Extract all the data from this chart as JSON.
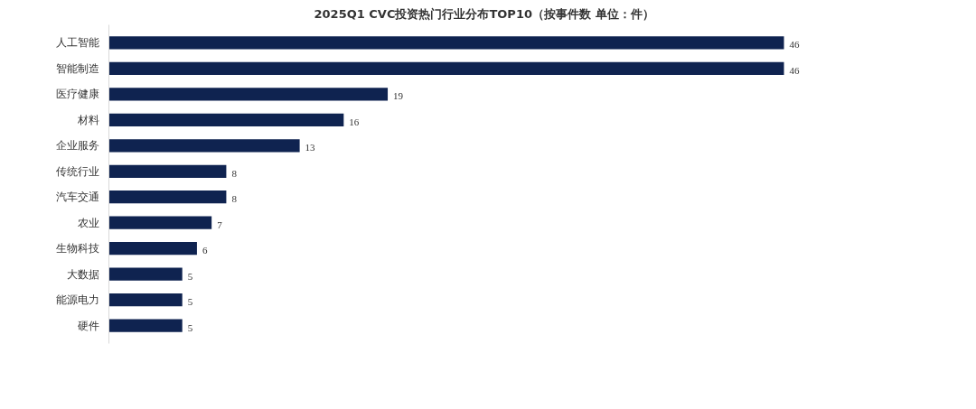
{
  "chart_data": {
    "type": "bar",
    "orientation": "horizontal",
    "title": "2025Q1 CVC投资热门行业分布TOP10（按事件数 单位：件）",
    "categories": [
      "人工智能",
      "智能制造",
      "医疗健康",
      "材料",
      "企业服务",
      "传统行业",
      "汽车交通",
      "农业",
      "生物科技",
      "大数据",
      "能源电力",
      "硬件"
    ],
    "values": [
      46,
      46,
      19,
      16,
      13,
      8,
      8,
      7,
      6,
      5,
      5,
      5
    ],
    "color": "#0f2350",
    "data_labels": true,
    "grid": false
  }
}
